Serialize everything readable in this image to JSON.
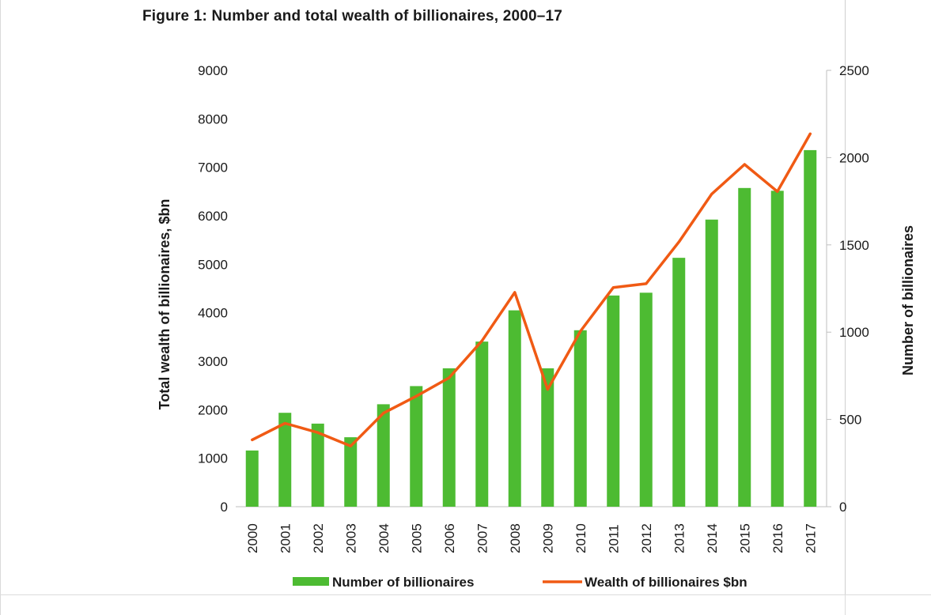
{
  "chart_data": {
    "type": "bar",
    "title": "Figure 1: Number and total wealth of billionaires, 2000–17",
    "categories": [
      "2000",
      "2001",
      "2002",
      "2003",
      "2004",
      "2005",
      "2006",
      "2007",
      "2008",
      "2009",
      "2010",
      "2011",
      "2012",
      "2013",
      "2014",
      "2015",
      "2016",
      "2017"
    ],
    "ylabel_left": "Total wealth of billionaires, $bn",
    "ylabel_right": "Number of billionaires",
    "ylim_left": [
      0,
      9000
    ],
    "ylim_right": [
      0,
      2500
    ],
    "yticks_left": [
      "0",
      "1000",
      "2000",
      "3000",
      "4000",
      "5000",
      "6000",
      "7000",
      "8000",
      "9000"
    ],
    "yticks_right": [
      "0",
      "500",
      "1000",
      "1500",
      "2000",
      "2500"
    ],
    "series": [
      {
        "name": "Number of billionaires",
        "type": "bar",
        "axis": "right",
        "color": "#4dbb32",
        "values": [
          322,
          538,
          476,
          398,
          587,
          691,
          793,
          946,
          1125,
          793,
          1011,
          1210,
          1226,
          1426,
          1645,
          1826,
          1810,
          2043
        ]
      },
      {
        "name": "Wealth of billionaires $bn",
        "type": "line",
        "axis": "left",
        "color": "#f05a14",
        "values": [
          1380,
          1720,
          1530,
          1250,
          1930,
          2280,
          2660,
          3420,
          4420,
          2420,
          3620,
          4520,
          4600,
          5460,
          6450,
          7060,
          6500,
          7690
        ]
      }
    ],
    "grid": false,
    "legend": "bottom"
  }
}
